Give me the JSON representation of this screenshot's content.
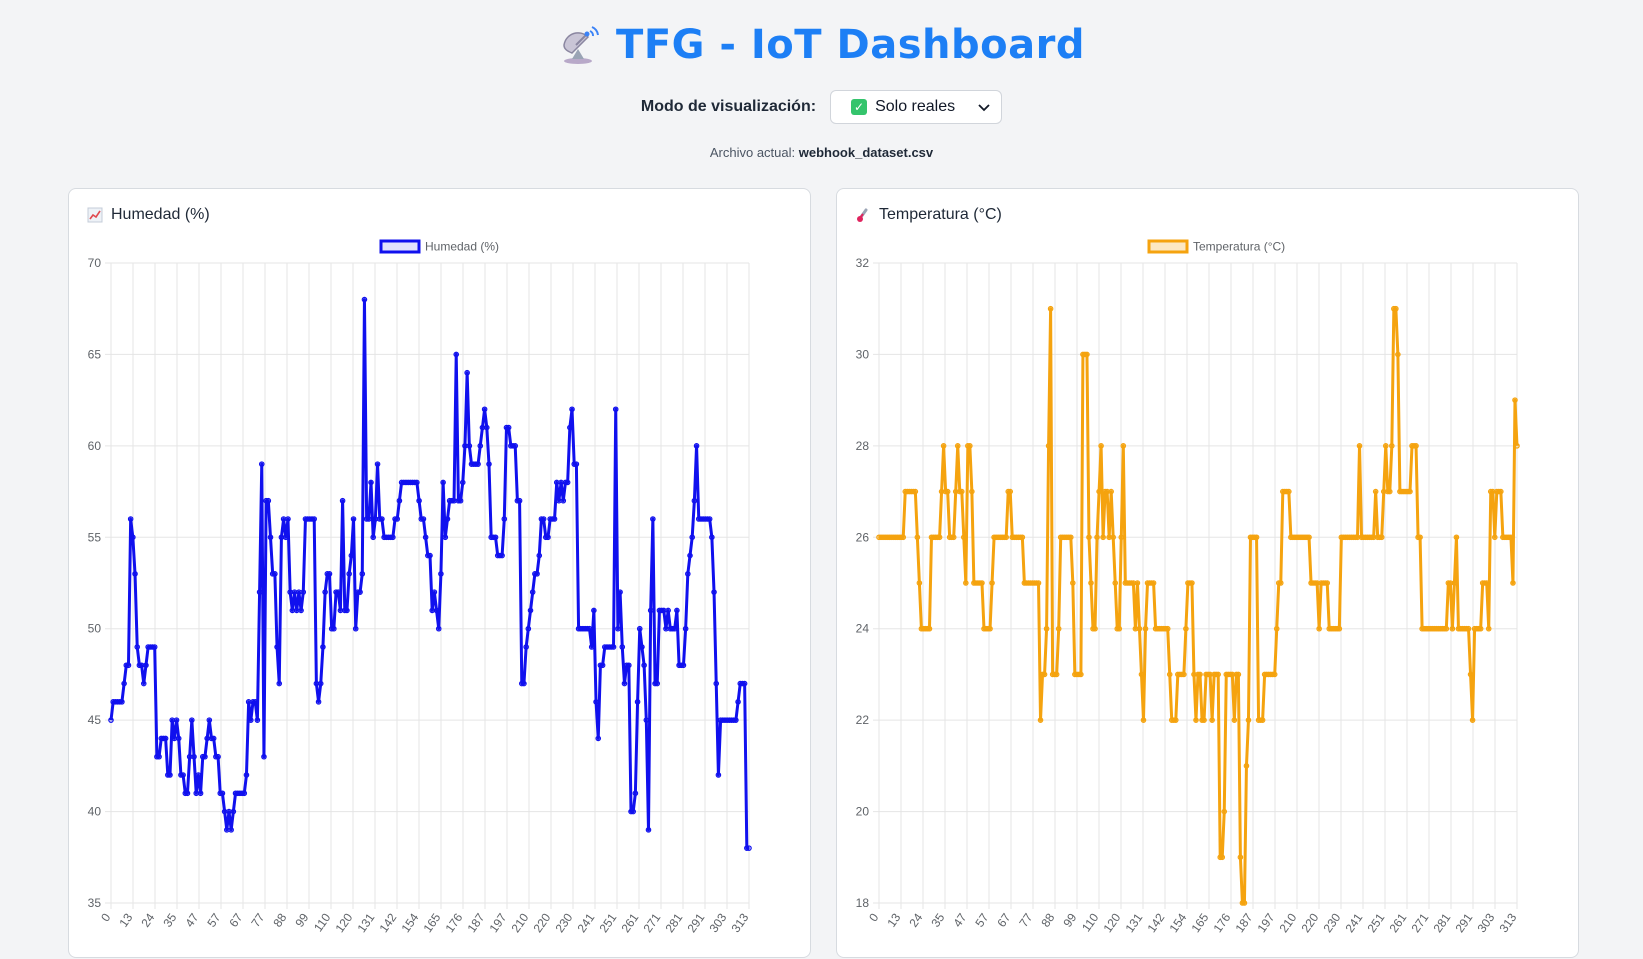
{
  "header": {
    "title": "TFG - IoT Dashboard",
    "icon": "satellite-antenna-icon"
  },
  "mode": {
    "label": "Modo de visualización:",
    "selected": "Solo reales",
    "icon": "check-box-icon"
  },
  "file": {
    "label": "Archivo actual:",
    "name": "webhook_dataset.csv"
  },
  "colors": {
    "title": "#1d7ff5",
    "humidity": "#1010ee",
    "temperature": "#f5a30f"
  },
  "cards": {
    "humidity": {
      "title": "Humedad (%)",
      "icon": "chart-increasing-icon"
    },
    "temperature": {
      "title": "Temperatura (°C)",
      "icon": "thermometer-icon"
    }
  },
  "chart_data": [
    {
      "type": "line",
      "legend": "Humedad (%)",
      "legend_position": "top",
      "grid": true,
      "ylim": [
        35,
        70
      ],
      "yticks": [
        35,
        40,
        45,
        50,
        55,
        60,
        65,
        70
      ],
      "xticks": [
        "0",
        "13",
        "24",
        "35",
        "47",
        "57",
        "67",
        "77",
        "88",
        "99",
        "110",
        "120",
        "131",
        "142",
        "154",
        "165",
        "176",
        "187",
        "197",
        "210",
        "220",
        "230",
        "241",
        "251",
        "261",
        "271",
        "281",
        "291",
        "303",
        "313"
      ],
      "series": [
        {
          "name": "Humedad (%)",
          "values": [
            45,
            46,
            46,
            46,
            46,
            46,
            47,
            48,
            48,
            56,
            55,
            53,
            49,
            48,
            48,
            47,
            48,
            49,
            49,
            49,
            49,
            43,
            43,
            44,
            44,
            44,
            42,
            42,
            45,
            44,
            45,
            44,
            42,
            42,
            41,
            41,
            43,
            45,
            43,
            41,
            42,
            41,
            43,
            43,
            44,
            45,
            44,
            44,
            43,
            43,
            41,
            41,
            40,
            39,
            40,
            39,
            40,
            41,
            41,
            41,
            41,
            41,
            42,
            46,
            45,
            46,
            46,
            45,
            52,
            59,
            43,
            57,
            57,
            55,
            53,
            53,
            49,
            47,
            55,
            56,
            55,
            56,
            52,
            51,
            52,
            51,
            52,
            51,
            52,
            56,
            56,
            56,
            56,
            56,
            47,
            46,
            47,
            49,
            52,
            53,
            53,
            50,
            50,
            52,
            52,
            51,
            57,
            51,
            51,
            53,
            54,
            56,
            50,
            52,
            52,
            53,
            68,
            56,
            56,
            58,
            55,
            56,
            59,
            56,
            56,
            55,
            55,
            55,
            55,
            55,
            56,
            56,
            57,
            58,
            58,
            58,
            58,
            58,
            58,
            58,
            58,
            57,
            56,
            56,
            55,
            54,
            54,
            51,
            52,
            51,
            50,
            53,
            58,
            55,
            56,
            57,
            57,
            57,
            65,
            57,
            57,
            58,
            60,
            64,
            60,
            59,
            59,
            59,
            59,
            60,
            61,
            62,
            61,
            59,
            55,
            55,
            55,
            54,
            54,
            54,
            56,
            61,
            61,
            60,
            60,
            60,
            57,
            57,
            47,
            47,
            49,
            50,
            51,
            52,
            53,
            53,
            54,
            56,
            56,
            55,
            55,
            56,
            56,
            56,
            58,
            57,
            58,
            57,
            58,
            58,
            61,
            62,
            59,
            59,
            50,
            50,
            50,
            50,
            50,
            50,
            49,
            51,
            46,
            44,
            48,
            48,
            49,
            49,
            49,
            49,
            49,
            62,
            50,
            52,
            49,
            47,
            48,
            48,
            40,
            40,
            41,
            46,
            50,
            49,
            48,
            45,
            39,
            51,
            56,
            47,
            47,
            51,
            51,
            51,
            50,
            51,
            50,
            50,
            50,
            51,
            48,
            48,
            48,
            50,
            53,
            54,
            55,
            57,
            60,
            56,
            56,
            56,
            56,
            56,
            56,
            55,
            52,
            47,
            42,
            45,
            45,
            45,
            45,
            45,
            45,
            45,
            45,
            46,
            47,
            47,
            47,
            38,
            38
          ]
        }
      ]
    },
    {
      "type": "line",
      "legend": "Temperatura (°C)",
      "legend_position": "top",
      "grid": true,
      "ylim": [
        18,
        32
      ],
      "yticks": [
        18,
        20,
        22,
        24,
        26,
        28,
        30,
        32
      ],
      "xticks": [
        "0",
        "13",
        "24",
        "35",
        "47",
        "57",
        "67",
        "77",
        "88",
        "99",
        "110",
        "120",
        "131",
        "142",
        "154",
        "165",
        "176",
        "187",
        "197",
        "210",
        "220",
        "230",
        "241",
        "251",
        "261",
        "271",
        "281",
        "291",
        "303",
        "313"
      ],
      "series": [
        {
          "name": "Temperatura (°C)",
          "values": [
            26,
            26,
            26,
            26,
            26,
            26,
            26,
            26,
            26,
            26,
            26,
            26,
            26,
            27,
            27,
            27,
            27,
            27,
            27,
            26,
            25,
            24,
            24,
            24,
            24,
            24,
            26,
            26,
            26,
            26,
            26,
            27,
            28,
            27,
            27,
            26,
            26,
            26,
            27,
            28,
            27,
            27,
            26,
            25,
            28,
            28,
            27,
            25,
            25,
            25,
            25,
            25,
            24,
            24,
            24,
            24,
            25,
            26,
            26,
            26,
            26,
            26,
            26,
            26,
            27,
            27,
            26,
            26,
            26,
            26,
            26,
            26,
            25,
            25,
            25,
            25,
            25,
            25,
            25,
            25,
            22,
            23,
            23,
            24,
            28,
            31,
            23,
            23,
            23,
            24,
            26,
            26,
            26,
            26,
            26,
            26,
            25,
            23,
            23,
            23,
            23,
            30,
            30,
            30,
            26,
            25,
            24,
            24,
            26,
            27,
            28,
            26,
            27,
            27,
            26,
            27,
            26,
            25,
            24,
            24,
            26,
            28,
            25,
            25,
            25,
            25,
            25,
            24,
            25,
            24,
            23,
            22,
            24,
            25,
            25,
            25,
            25,
            24,
            24,
            24,
            24,
            24,
            24,
            24,
            23,
            22,
            22,
            22,
            23,
            23,
            23,
            23,
            24,
            25,
            25,
            25,
            23,
            22,
            23,
            23,
            22,
            22,
            23,
            23,
            23,
            22,
            23,
            23,
            23,
            19,
            19,
            20,
            23,
            23,
            23,
            23,
            22,
            23,
            23,
            19,
            18,
            18,
            21,
            22,
            26,
            26,
            26,
            26,
            22,
            22,
            22,
            23,
            23,
            23,
            23,
            23,
            23,
            24,
            25,
            25,
            27,
            27,
            27,
            27,
            26,
            26,
            26,
            26,
            26,
            26,
            26,
            26,
            26,
            26,
            25,
            25,
            25,
            25,
            24,
            25,
            25,
            25,
            25,
            24,
            24,
            24,
            24,
            24,
            24,
            26,
            26,
            26,
            26,
            26,
            26,
            26,
            26,
            26,
            28,
            26,
            26,
            26,
            26,
            26,
            26,
            26,
            27,
            26,
            26,
            26,
            27,
            28,
            27,
            27,
            28,
            31,
            31,
            30,
            27,
            27,
            27,
            27,
            27,
            27,
            28,
            28,
            28,
            26,
            26,
            24,
            24,
            24,
            24,
            24,
            24,
            24,
            24,
            24,
            24,
            24,
            24,
            24,
            25,
            25,
            24,
            25,
            26,
            24,
            24,
            24,
            24,
            24,
            24,
            23,
            22,
            24,
            24,
            24,
            24,
            25,
            25,
            25,
            24,
            27,
            27,
            26,
            27,
            27,
            27,
            26,
            26,
            26,
            26,
            26,
            25,
            29,
            28
          ]
        }
      ]
    }
  ]
}
